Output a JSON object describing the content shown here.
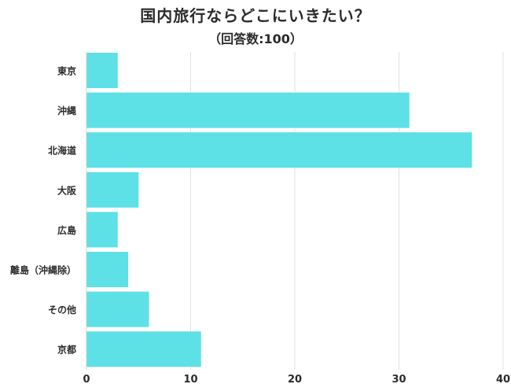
{
  "chart_data": {
    "type": "bar",
    "orientation": "horizontal",
    "title": "国内旅行ならどこにいきたい？",
    "subtitle": "（回答数:100）",
    "categories": [
      "東京",
      "沖縄",
      "北海道",
      "大阪",
      "広島",
      "離島（沖縄除）",
      "その他",
      "京都"
    ],
    "values": [
      3,
      31,
      37,
      5,
      3,
      4,
      6,
      11
    ],
    "xlim": [
      0,
      40
    ],
    "xticks": [
      "0",
      "10",
      "20",
      "30",
      "40"
    ],
    "grid": true,
    "bar_color": "#5de0e6"
  }
}
